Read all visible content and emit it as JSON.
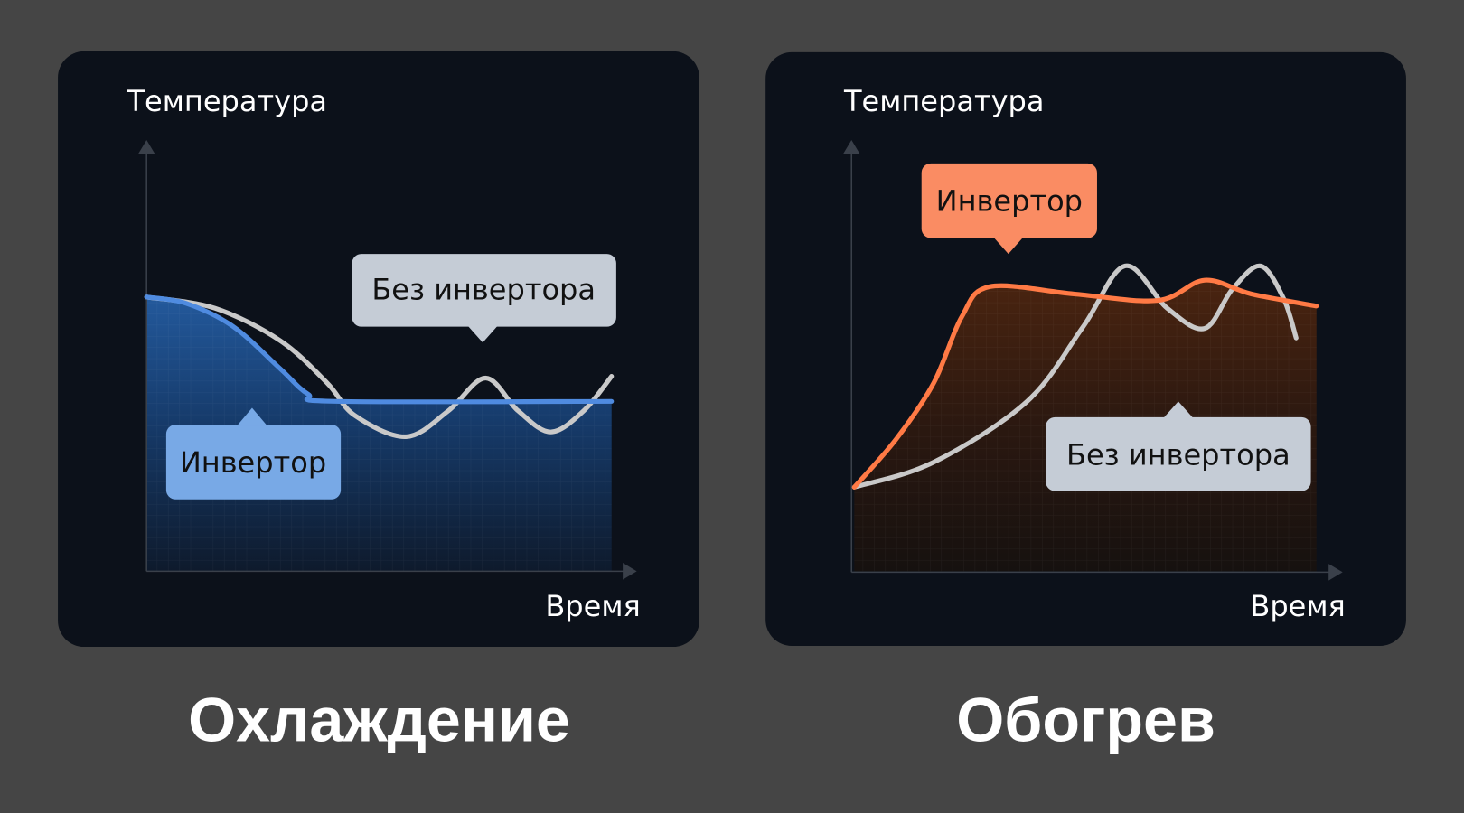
{
  "colors": {
    "background": "#454545",
    "card": "#0c111a",
    "inverter_cool": "#4f8be0",
    "inverter_cool_label": "#78a9e6",
    "inverter_heat": "#ff7a45",
    "inverter_heat_label": "#fa8c63",
    "no_inverter": "#c5ccd6"
  },
  "chart_data": [
    {
      "type": "line",
      "title": "Охлаждение",
      "xlabel": "Время",
      "ylabel": "Температура",
      "xlim": [
        0,
        100
      ],
      "ylim": [
        0,
        100
      ],
      "grid": false,
      "series": [
        {
          "name": "Инвертор",
          "filled": true,
          "x": [
            0,
            8.6,
            18.7,
            28.7,
            34.7,
            40.8,
            100
          ],
          "y": [
            63.6,
            62.1,
            56.7,
            47,
            41.1,
            39.4,
            39.4
          ]
        },
        {
          "name": "Без инвертора",
          "x": [
            0,
            14.7,
            28.7,
            38.8,
            44.8,
            55.8,
            64.9,
            72.9,
            79.9,
            86.9,
            94,
            100
          ],
          "y": [
            63.6,
            61,
            53.5,
            43.7,
            36.1,
            31.2,
            37.2,
            44.8,
            37.2,
            32.3,
            37.2,
            45.2
          ]
        }
      ]
    },
    {
      "type": "line",
      "title": "Обогрев",
      "xlabel": "Время",
      "ylabel": "Температура",
      "xlim": [
        0,
        100
      ],
      "ylim": [
        0,
        100
      ],
      "grid": false,
      "series": [
        {
          "name": "Инвертор",
          "filled": true,
          "x": [
            0,
            9.1,
            17.2,
            23.2,
            29.3,
            47.5,
            65.7,
            75.8,
            85.9,
            100
          ],
          "y": [
            19.5,
            30.7,
            43.7,
            58.9,
            66,
            64.3,
            62.8,
            67.5,
            64.3,
            61.5
          ]
        },
        {
          "name": "Без инвертора",
          "x": [
            0,
            17.2,
            37.4,
            49.5,
            58.6,
            67.7,
            75.8,
            81.8,
            87.9,
            92.9,
            95.6
          ],
          "y": [
            19.5,
            25.3,
            39.4,
            56.7,
            70.8,
            61,
            56.3,
            65.4,
            70.8,
            63.2,
            54.1
          ]
        }
      ]
    }
  ]
}
